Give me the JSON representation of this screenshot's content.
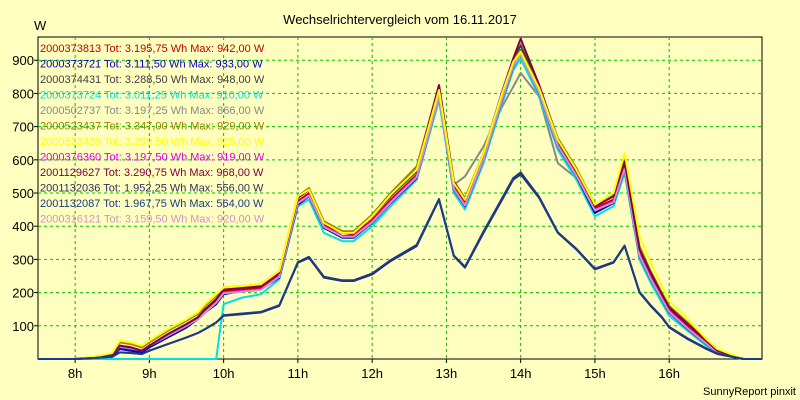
{
  "chart_data": {
    "type": "line",
    "title": "Wechselrichtervergleich vom 16.11.2017",
    "ylabel": "W",
    "footer": "SunnyReport pinxit",
    "x_ticks": [
      "8h",
      "9h",
      "10h",
      "11h",
      "12h",
      "13h",
      "14h",
      "15h",
      "16h"
    ],
    "y_ticks": [
      100,
      200,
      300,
      400,
      500,
      600,
      700,
      800,
      900
    ],
    "xlim": [
      7.5,
      17.25
    ],
    "ylim": [
      0,
      970
    ],
    "grid": true,
    "legend_position": "top-left",
    "x": [
      7.5,
      8.0,
      8.25,
      8.5,
      8.6,
      8.75,
      8.9,
      9.0,
      9.25,
      9.5,
      9.65,
      9.75,
      9.9,
      10.0,
      10.25,
      10.5,
      10.75,
      11.0,
      11.15,
      11.35,
      11.6,
      11.75,
      12.0,
      12.25,
      12.6,
      12.9,
      13.1,
      13.25,
      13.5,
      13.75,
      13.9,
      14.0,
      14.25,
      14.5,
      14.75,
      15.0,
      15.25,
      15.4,
      15.6,
      15.75,
      15.9,
      16.0,
      16.25,
      16.5,
      16.65,
      17.0,
      17.25
    ],
    "series": [
      {
        "name": "2000373813",
        "color": "#c00000",
        "label": "2000373813 Tot: 3.195,75 Wh Max: 942,00 W",
        "values": [
          0,
          0,
          5,
          12,
          40,
          35,
          25,
          40,
          70,
          100,
          125,
          145,
          175,
          205,
          210,
          215,
          255,
          475,
          500,
          405,
          370,
          375,
          420,
          480,
          555,
          800,
          520,
          470,
          610,
          790,
          890,
          930,
          810,
          650,
          560,
          455,
          480,
          580,
          320,
          250,
          190,
          150,
          100,
          50,
          25,
          0,
          0
        ]
      },
      {
        "name": "2000373721",
        "color": "#0000c0",
        "label": "2000373721 Tot: 3.111,50 Wh Max: 933,00 W",
        "values": [
          0,
          0,
          4,
          10,
          30,
          25,
          20,
          35,
          65,
          95,
          120,
          140,
          165,
          195,
          205,
          210,
          245,
          465,
          490,
          395,
          365,
          365,
          410,
          470,
          545,
          790,
          510,
          460,
          600,
          780,
          880,
          920,
          800,
          640,
          550,
          440,
          470,
          570,
          310,
          240,
          180,
          140,
          90,
          45,
          20,
          0,
          0
        ]
      },
      {
        "name": "2000374431",
        "color": "#404040",
        "label": "2000374431 Tot: 3.288,50 Wh Max: 948,00 W",
        "values": [
          0,
          0,
          5,
          12,
          40,
          35,
          25,
          40,
          75,
          105,
          125,
          150,
          180,
          210,
          215,
          220,
          260,
          485,
          510,
          410,
          380,
          380,
          430,
          490,
          565,
          815,
          530,
          480,
          615,
          800,
          900,
          945,
          820,
          655,
          565,
          460,
          490,
          590,
          330,
          255,
          195,
          155,
          105,
          55,
          25,
          0,
          0
        ]
      },
      {
        "name": "2000373724",
        "color": "#00e0e0",
        "label": "2000373724 Tot: 3.011,25 Wh Max: 910,00 W",
        "values": [
          0,
          0,
          0,
          0,
          0,
          0,
          0,
          0,
          0,
          0,
          0,
          0,
          0,
          165,
          185,
          195,
          240,
          460,
          480,
          380,
          355,
          355,
          400,
          460,
          540,
          780,
          500,
          450,
          590,
          770,
          870,
          905,
          790,
          630,
          540,
          430,
          460,
          560,
          300,
          230,
          170,
          130,
          85,
          40,
          15,
          0,
          0
        ]
      },
      {
        "name": "2000502737",
        "color": "#888888",
        "label": "2000502737 Tot: 3.197,25 Wh Max: 866,00 W",
        "values": [
          0,
          0,
          4,
          10,
          35,
          30,
          25,
          40,
          70,
          100,
          120,
          140,
          170,
          200,
          205,
          210,
          250,
          475,
          495,
          400,
          370,
          370,
          420,
          470,
          545,
          790,
          525,
          550,
          640,
          760,
          820,
          862,
          790,
          590,
          545,
          440,
          470,
          565,
          310,
          245,
          185,
          150,
          100,
          50,
          25,
          0,
          0
        ]
      },
      {
        "name": "2000523437",
        "color": "#a08000",
        "label": "2000523437 Tot: 3.347,00 Wh Max: 929,00 W",
        "values": [
          0,
          0,
          6,
          15,
          50,
          45,
          35,
          50,
          85,
          115,
          135,
          160,
          190,
          215,
          220,
          225,
          265,
          490,
          515,
          415,
          385,
          385,
          435,
          500,
          580,
          825,
          535,
          485,
          620,
          800,
          900,
          928,
          820,
          665,
          575,
          465,
          495,
          600,
          340,
          265,
          200,
          160,
          110,
          55,
          25,
          0,
          0
        ]
      },
      {
        "name": "2000523439",
        "color": "#ffff00",
        "label": "2000523439 Tot: 3.299,50 Wh Max: 925,00 W",
        "values": [
          0,
          0,
          7,
          18,
          55,
          50,
          40,
          55,
          90,
          120,
          140,
          165,
          195,
          215,
          220,
          225,
          265,
          490,
          510,
          410,
          380,
          380,
          430,
          495,
          570,
          810,
          530,
          480,
          620,
          800,
          895,
          925,
          815,
          660,
          570,
          465,
          500,
          620,
          370,
          290,
          220,
          175,
          120,
          60,
          30,
          0,
          0
        ]
      },
      {
        "name": "2000376360",
        "color": "#e000e0",
        "label": "2000376360 Tot: 3.197,50 Wh Max: 919,00 W",
        "values": [
          0,
          0,
          5,
          12,
          40,
          35,
          25,
          40,
          70,
          100,
          120,
          140,
          170,
          200,
          205,
          210,
          250,
          470,
          495,
          400,
          370,
          370,
          415,
          475,
          550,
          795,
          515,
          465,
          605,
          785,
          885,
          918,
          805,
          645,
          555,
          450,
          475,
          575,
          315,
          245,
          185,
          145,
          95,
          48,
          22,
          0,
          0
        ]
      },
      {
        "name": "2001129627",
        "color": "#800040",
        "label": "2001129627 Tot: 3.290,75 Wh Max: 968,00 W",
        "values": [
          0,
          0,
          5,
          12,
          40,
          35,
          25,
          40,
          75,
          105,
          125,
          150,
          180,
          210,
          215,
          220,
          260,
          485,
          510,
          410,
          380,
          380,
          430,
          495,
          570,
          825,
          535,
          480,
          620,
          805,
          905,
          965,
          825,
          660,
          570,
          460,
          490,
          595,
          330,
          260,
          195,
          155,
          105,
          55,
          25,
          0,
          0
        ]
      },
      {
        "name": "2001132036",
        "color": "#303060",
        "label": "2001132036 Tot: 1.952,25 Wh Max: 556,00 W",
        "values": [
          0,
          0,
          3,
          7,
          20,
          18,
          15,
          25,
          45,
          65,
          78,
          90,
          110,
          130,
          135,
          140,
          160,
          290,
          305,
          245,
          235,
          235,
          255,
          295,
          340,
          480,
          310,
          275,
          380,
          480,
          540,
          556,
          485,
          380,
          330,
          270,
          290,
          340,
          200,
          160,
          125,
          95,
          60,
          30,
          15,
          0,
          0
        ]
      },
      {
        "name": "2001132087",
        "color": "#1a3a8a",
        "label": "2001132087 Tot: 1.967,75 Wh Max: 564,00 W",
        "values": [
          0,
          0,
          3,
          7,
          20,
          18,
          15,
          25,
          45,
          65,
          78,
          90,
          110,
          132,
          137,
          142,
          162,
          292,
          308,
          248,
          237,
          237,
          258,
          298,
          344,
          482,
          312,
          278,
          384,
          484,
          545,
          562,
          488,
          382,
          332,
          272,
          292,
          342,
          202,
          162,
          127,
          97,
          62,
          32,
          17,
          0,
          0
        ]
      },
      {
        "name": "2000316121",
        "color": "#d890c0",
        "label": "2000316121 Tot: 3.159,50 Wh Max: 920,00 W",
        "values": [
          0,
          0,
          5,
          12,
          38,
          33,
          25,
          40,
          70,
          100,
          120,
          140,
          170,
          198,
          203,
          208,
          248,
          470,
          492,
          398,
          368,
          368,
          412,
          472,
          548,
          790,
          512,
          462,
          602,
          782,
          882,
          918,
          802,
          642,
          552,
          448,
          472,
          572,
          312,
          242,
          182,
          142,
          92,
          46,
          20,
          0,
          0
        ]
      }
    ]
  }
}
